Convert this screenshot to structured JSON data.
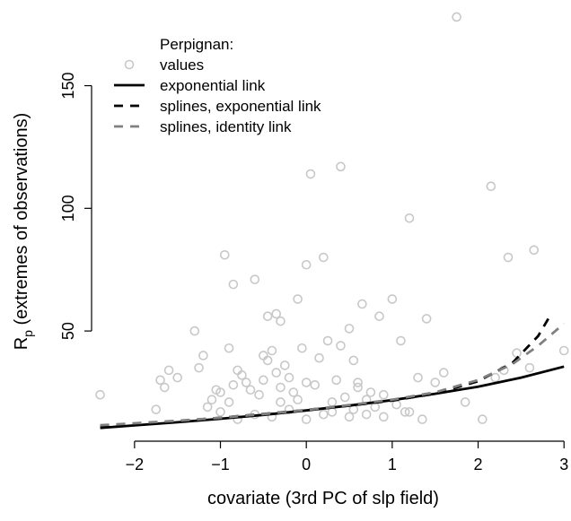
{
  "chart_data": {
    "type": "scatter",
    "title": "",
    "xlabel": "covariate (3rd PC of slp field)",
    "ylabel_main": "R",
    "ylabel_sub": "p",
    "ylabel_rest": " (extremes of observations)",
    "xlim": [
      -2.5,
      3.05
    ],
    "ylim": [
      8,
      182
    ],
    "x_ticks": [
      -2,
      -1,
      0,
      1,
      2,
      3
    ],
    "x_tick_labels": [
      "−2",
      "−1",
      "0",
      "1",
      "2",
      "3"
    ],
    "y_ticks": [
      50,
      100,
      150
    ],
    "y_tick_labels": [
      "50",
      "100",
      "150"
    ],
    "legend": {
      "placement": "top-left",
      "title": "Perpignan:",
      "entries": [
        {
          "label": "values",
          "style": "points",
          "color": "#c8c8c8"
        },
        {
          "label": "exponential link",
          "style": "solid",
          "color": "#000000"
        },
        {
          "label": "splines, exponential link",
          "style": "dashed",
          "color": "#000000"
        },
        {
          "label": "splines, identity link",
          "style": "dashed",
          "color": "#808080"
        }
      ]
    },
    "points": {
      "name": "values",
      "color": "#c8c8c8",
      "x": [
        -2.4,
        -1.75,
        -1.7,
        -1.65,
        -1.6,
        -1.5,
        -1.3,
        -1.25,
        -1.2,
        -1.15,
        -1.1,
        -1.05,
        -1.0,
        -0.95,
        -0.9,
        -0.9,
        -0.85,
        -0.85,
        -0.8,
        -0.75,
        -0.7,
        -0.65,
        -0.6,
        -0.55,
        -0.5,
        -0.45,
        -0.45,
        -0.4,
        -0.35,
        -0.35,
        -0.3,
        -0.3,
        -0.25,
        -0.2,
        -0.15,
        -0.1,
        -0.05,
        0.0,
        0.0,
        0.05,
        0.1,
        0.15,
        0.2,
        0.25,
        0.3,
        0.35,
        0.4,
        0.45,
        0.5,
        0.55,
        0.6,
        0.65,
        0.7,
        0.75,
        0.8,
        0.85,
        0.9,
        1.0,
        1.05,
        1.1,
        1.15,
        1.2,
        1.3,
        1.4,
        1.5,
        1.6,
        1.75,
        1.85,
        2.05,
        2.15,
        2.2,
        2.3,
        2.35,
        2.45,
        2.6,
        2.65,
        3.0,
        -1.0,
        -0.8,
        -0.6,
        -0.4,
        -0.3,
        -0.2,
        0.0,
        0.2,
        0.3,
        0.5,
        0.55,
        0.7,
        0.9,
        1.2,
        1.35,
        -0.5,
        -0.1,
        0.4,
        0.6
      ],
      "y": [
        24,
        18,
        30,
        27,
        34,
        31,
        50,
        35,
        40,
        19,
        22,
        26,
        25,
        81,
        43,
        21,
        69,
        28,
        34,
        32,
        29,
        26,
        71,
        24,
        40,
        38,
        56,
        42,
        33,
        57,
        27,
        54,
        36,
        31,
        25,
        63,
        43,
        29,
        77,
        114,
        28,
        39,
        80,
        46,
        21,
        30,
        117,
        23,
        51,
        38,
        27,
        61,
        22,
        25,
        19,
        56,
        24,
        63,
        20,
        46,
        17,
        96,
        31,
        55,
        29,
        33,
        178,
        21,
        14,
        109,
        31,
        34,
        80,
        41,
        35,
        83,
        42,
        17,
        14,
        16,
        15,
        21,
        18,
        14,
        16,
        17,
        15,
        18,
        16,
        15,
        17,
        14,
        30,
        22,
        44,
        29
      ]
    },
    "series": [
      {
        "name": "exponential link",
        "style": "solid",
        "color": "#000000",
        "x": [
          -2.4,
          -2.0,
          -1.5,
          -1.0,
          -0.5,
          0.0,
          0.5,
          1.0,
          1.5,
          2.0,
          2.5,
          3.0
        ],
        "y": [
          10.5,
          11.5,
          12.8,
          14.2,
          15.8,
          17.6,
          19.6,
          21.8,
          24.4,
          27.3,
          31.0,
          35.5
        ]
      },
      {
        "name": "splines, exponential link",
        "style": "dashed",
        "color": "#000000",
        "x": [
          -2.4,
          -2.0,
          -1.5,
          -1.0,
          -0.5,
          0.0,
          0.5,
          1.0,
          1.5,
          2.0,
          2.4,
          2.7,
          2.85
        ],
        "y": [
          11.2,
          12.2,
          13.3,
          14.6,
          16.2,
          17.8,
          19.6,
          21.6,
          24.5,
          29.5,
          37.0,
          48.0,
          57.0
        ]
      },
      {
        "name": "splines, identity link",
        "style": "dashed",
        "color": "#808080",
        "x": [
          -2.4,
          -2.0,
          -1.5,
          -1.0,
          -0.5,
          0.0,
          0.5,
          1.0,
          1.5,
          2.0,
          2.4,
          2.7,
          3.0
        ],
        "y": [
          11.6,
          12.4,
          13.4,
          14.6,
          16.1,
          17.8,
          19.8,
          22.0,
          25.0,
          30.0,
          36.5,
          44.0,
          53.0
        ]
      }
    ]
  }
}
